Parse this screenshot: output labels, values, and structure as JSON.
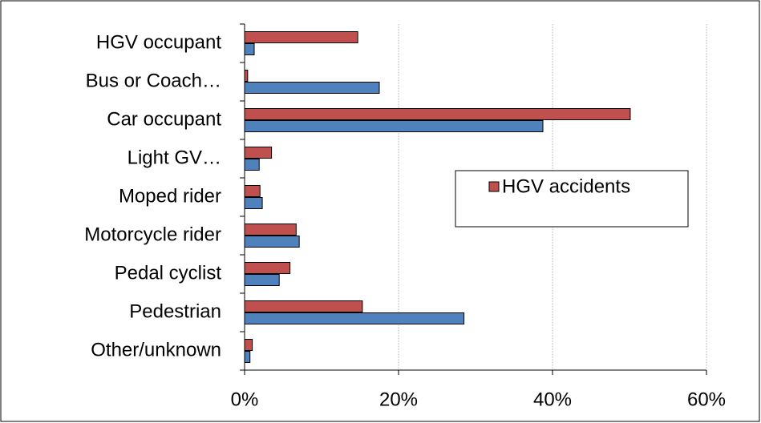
{
  "chart_data": {
    "type": "bar",
    "orientation": "horizontal",
    "categories": [
      "HGV occupant",
      "Bus or Coach…",
      "Car occupant",
      "Light GV…",
      "Moped rider",
      "Motorcycle rider",
      "Pedal cyclist",
      "Pedestrian",
      "Other/unknown"
    ],
    "series": [
      {
        "name": "HGV accidents",
        "color": "#c0504d",
        "values": [
          14.7,
          0.4,
          50.1,
          3.5,
          2.0,
          6.7,
          5.9,
          15.3,
          1.0
        ]
      },
      {
        "color": "#4f81bd",
        "values": [
          1.25,
          17.5,
          38.75,
          1.9,
          2.3,
          7.1,
          4.5,
          28.5,
          0.7
        ]
      }
    ],
    "xlim": [
      0,
      60
    ],
    "xticks": [
      {
        "value": 0,
        "label": "0%"
      },
      {
        "value": 20,
        "label": "20%"
      },
      {
        "value": 40,
        "label": "40%"
      },
      {
        "value": 60,
        "label": "60%"
      }
    ],
    "grid": true
  }
}
